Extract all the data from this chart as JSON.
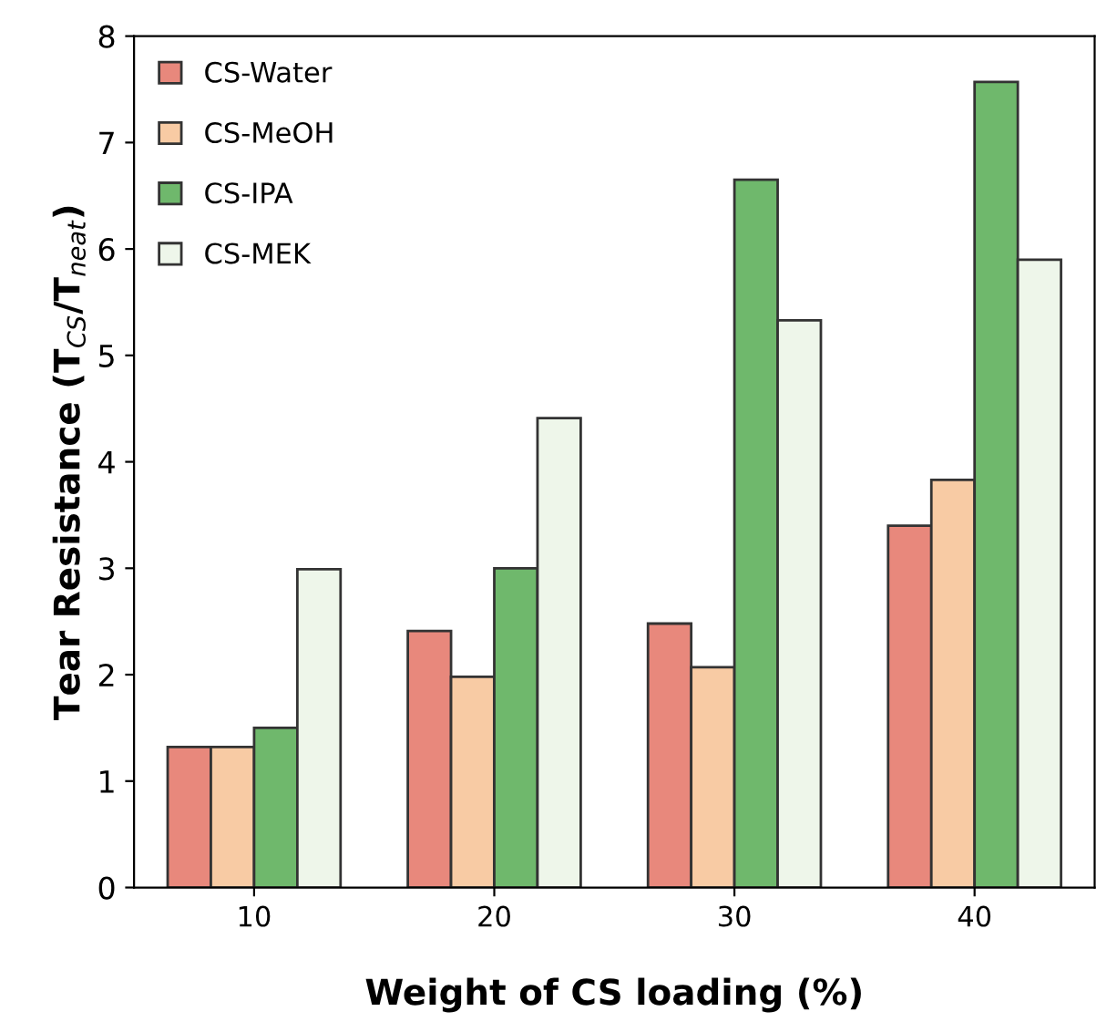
{
  "chart_data": {
    "type": "bar",
    "xlabel": "Weight of CS loading (%)",
    "ylabel": "Tear Resistance (T$_{CS}$/T$_{neat}$)",
    "categories": [
      "10",
      "20",
      "30",
      "40"
    ],
    "series": [
      {
        "name": "CS-Water",
        "color": "#e8887c",
        "values": [
          1.32,
          2.41,
          2.48,
          3.4
        ]
      },
      {
        "name": "CS-MeOH",
        "color": "#f8cba4",
        "values": [
          1.32,
          1.98,
          2.07,
          3.83
        ]
      },
      {
        "name": "CS-IPA",
        "color": "#6fb86c",
        "values": [
          1.5,
          3.0,
          6.65,
          7.57
        ]
      },
      {
        "name": "CS-MEK",
        "color": "#eef6ea",
        "values": [
          2.99,
          4.41,
          5.33,
          5.9
        ]
      }
    ],
    "ylim": [
      0,
      8
    ],
    "yticks": [
      0,
      1,
      2,
      3,
      4,
      5,
      6,
      7,
      8
    ],
    "grid": false,
    "legend": "top left"
  }
}
